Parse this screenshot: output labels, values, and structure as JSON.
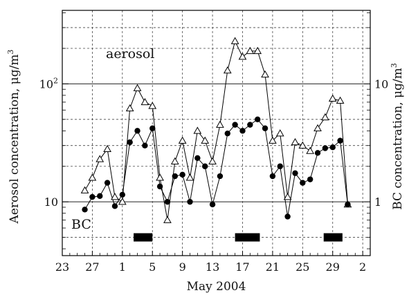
{
  "chart_data": {
    "type": "line",
    "title": "",
    "xlabel": "May 2004",
    "ylabel_left": "Aerosol concentration, μg/m",
    "ylabel_left_sup": "3",
    "ylabel_right": "BC concentration, μg/m",
    "ylabel_right_sup": "3",
    "x_axis": {
      "range": [
        -8.0,
        33.0
      ],
      "ticks": [
        {
          "value": -8,
          "label": "23"
        },
        {
          "value": -4,
          "label": "27"
        },
        {
          "value": 0,
          "label": "1"
        },
        {
          "value": 4,
          "label": "5"
        },
        {
          "value": 8,
          "label": "9"
        },
        {
          "value": 12,
          "label": "13"
        },
        {
          "value": 16,
          "label": "17"
        },
        {
          "value": 20,
          "label": "21"
        },
        {
          "value": 24,
          "label": "25"
        },
        {
          "value": 28,
          "label": "29"
        },
        {
          "value": 32,
          "label": "2"
        }
      ]
    },
    "y_left": {
      "scale": "log",
      "range": [
        3.5,
        420
      ],
      "ticks": [
        {
          "value": 10,
          "label": "10",
          "sup": ""
        },
        {
          "value": 100,
          "label": "10",
          "sup": "2"
        }
      ]
    },
    "y_right": {
      "scale": "log",
      "range": [
        0.35,
        42
      ],
      "ticks": [
        {
          "value": 1,
          "label": "1",
          "sup": ""
        },
        {
          "value": 10,
          "label": "10",
          "sup": ""
        }
      ]
    },
    "grid": true,
    "series": [
      {
        "name": "aerosol",
        "axis": "left",
        "marker": "open-triangle",
        "x": [
          -5,
          -4,
          -3,
          -2,
          -1,
          0,
          1,
          2,
          3,
          4,
          5,
          6,
          7,
          8,
          9,
          10,
          11,
          12,
          13,
          14,
          15,
          16,
          17,
          18,
          19,
          20,
          21,
          22,
          23,
          24,
          25,
          26,
          27,
          28,
          29,
          30,
          31
        ],
        "values": [
          12.5,
          16,
          23,
          28,
          11,
          10,
          62,
          92,
          70,
          65,
          16,
          7,
          22,
          33,
          16,
          40,
          33,
          22,
          45,
          130,
          230,
          170,
          190,
          190,
          120,
          33,
          38,
          11,
          32,
          30,
          27,
          42,
          52,
          75,
          72,
          9.5,
          null
        ]
      },
      {
        "name": "BC",
        "axis": "right",
        "marker": "filled-circle",
        "x": [
          -5,
          -4,
          -3,
          -2,
          -1,
          0,
          1,
          2,
          3,
          4,
          5,
          6,
          7,
          8,
          9,
          10,
          11,
          12,
          13,
          14,
          15,
          16,
          17,
          18,
          19,
          20,
          21,
          22,
          23,
          24,
          25,
          26,
          27,
          28,
          29,
          30
        ],
        "values": [
          0.86,
          1.1,
          1.12,
          1.45,
          0.92,
          1.15,
          3.2,
          4.0,
          3.0,
          4.2,
          1.35,
          1.0,
          1.65,
          1.7,
          1.0,
          2.35,
          2.0,
          0.95,
          1.65,
          3.8,
          4.5,
          4.0,
          4.5,
          5.0,
          4.2,
          1.65,
          2.0,
          0.75,
          1.75,
          1.45,
          1.55,
          2.6,
          2.85,
          2.9,
          3.3,
          0.95
        ]
      }
    ],
    "periods": [
      {
        "start": 1.5,
        "end": 4.0
      },
      {
        "start": 15.0,
        "end": 18.3
      },
      {
        "start": 26.8,
        "end": 29.3
      }
    ],
    "annotations": [
      {
        "text": "aerosol",
        "series": "aerosol"
      },
      {
        "text": "BC",
        "series": "BC"
      }
    ]
  }
}
